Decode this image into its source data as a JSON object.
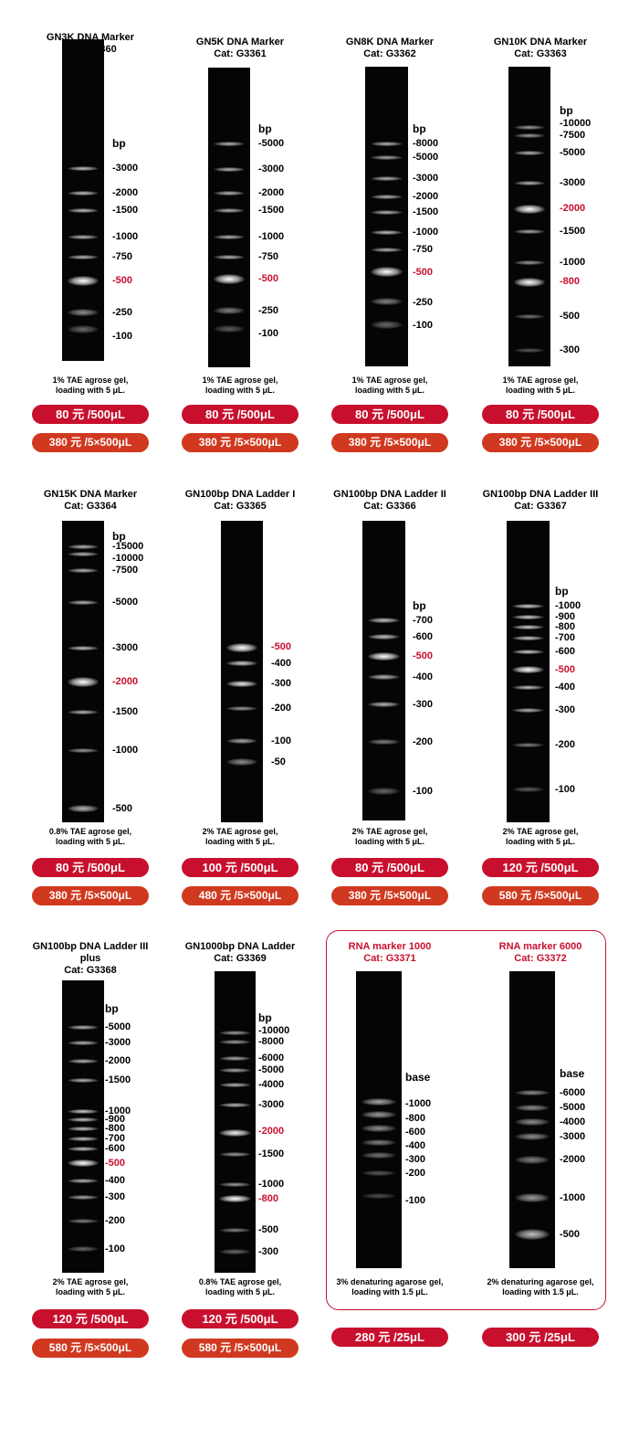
{
  "markers": [
    {
      "name": "GN3K DNA Marker",
      "cat": "Cat: G3360",
      "unit": "bp",
      "labels": [
        {
          "t": "-3000"
        },
        {
          "t": "-2000"
        },
        {
          "t": "-1500"
        },
        {
          "t": "-1000"
        },
        {
          "t": "-750"
        },
        {
          "t": "-500",
          "red": true
        },
        {
          "t": "-250"
        },
        {
          "t": "-100"
        }
      ],
      "note_line1": "1% TAE agrose gel,",
      "note_line2": "loading with 5 μL.",
      "price1": "80 元 /500μL",
      "price2": "380 元 /5×500μL"
    },
    {
      "name": "GN5K DNA Marker",
      "cat": "Cat: G3361",
      "unit": "bp",
      "labels": [
        {
          "t": "-5000"
        },
        {
          "t": "-3000"
        },
        {
          "t": "-2000"
        },
        {
          "t": "-1500"
        },
        {
          "t": "-1000"
        },
        {
          "t": "-750"
        },
        {
          "t": "-500",
          "red": true
        },
        {
          "t": "-250"
        },
        {
          "t": "-100"
        }
      ],
      "note_line1": "1% TAE agrose gel,",
      "note_line2": "loading with 5 μL.",
      "price1": "80 元 /500μL",
      "price2": "380 元 /5×500μL"
    },
    {
      "name": "GN8K DNA Marker",
      "cat": "Cat: G3362",
      "unit": "bp",
      "labels": [
        {
          "t": "-8000"
        },
        {
          "t": "-5000"
        },
        {
          "t": "-3000"
        },
        {
          "t": "-2000"
        },
        {
          "t": "-1500"
        },
        {
          "t": "-1000"
        },
        {
          "t": "-750"
        },
        {
          "t": "-500",
          "red": true
        },
        {
          "t": "-250"
        },
        {
          "t": "-100"
        }
      ],
      "note_line1": "1% TAE agrose gel,",
      "note_line2": "loading with 5 μL.",
      "price1": "80 元 /500μL",
      "price2": "380 元 /5×500μL"
    },
    {
      "name": "GN10K DNA Marker",
      "cat": "Cat: G3363",
      "unit": "bp",
      "labels": [
        {
          "t": "-10000"
        },
        {
          "t": "-7500"
        },
        {
          "t": "-5000"
        },
        {
          "t": "-3000"
        },
        {
          "t": "-2000",
          "red": true
        },
        {
          "t": "-1500"
        },
        {
          "t": "-1000"
        },
        {
          "t": "-800",
          "red": true
        },
        {
          "t": "-500"
        },
        {
          "t": "-300"
        }
      ],
      "note_line1": "1% TAE agrose gel,",
      "note_line2": "loading with 5 μL.",
      "price1": "80 元 /500μL",
      "price2": "380 元 /5×500μL"
    },
    {
      "name": "GN15K DNA Marker",
      "cat": "Cat: G3364",
      "unit": "bp",
      "labels": [
        {
          "t": "-15000"
        },
        {
          "t": "-10000"
        },
        {
          "t": "-7500"
        },
        {
          "t": "-5000"
        },
        {
          "t": "-3000"
        },
        {
          "t": "-2000",
          "red": true
        },
        {
          "t": "-1500"
        },
        {
          "t": "-1000"
        },
        {
          "t": "-500"
        }
      ],
      "note_line1": "0.8% TAE agrose gel,",
      "note_line2": "loading with 5 μL.",
      "price1": "80 元 /500μL",
      "price2": "380 元 /5×500μL"
    },
    {
      "name": "GN100bp DNA Ladder I",
      "cat": "Cat: G3365",
      "unit": "",
      "labels": [
        {
          "t": "-500",
          "red": true
        },
        {
          "t": "-400"
        },
        {
          "t": "-300"
        },
        {
          "t": "-200"
        },
        {
          "t": "-100"
        },
        {
          "t": "-50"
        }
      ],
      "note_line1": "2% TAE agrose gel,",
      "note_line2": "loading with 5 μL.",
      "price1": "100 元 /500μL",
      "price2": "480 元 /5×500μL"
    },
    {
      "name": "GN100bp DNA Ladder II",
      "cat": "Cat: G3366",
      "unit": "bp",
      "labels": [
        {
          "t": "-700"
        },
        {
          "t": "-600"
        },
        {
          "t": "-500",
          "red": true
        },
        {
          "t": "-400"
        },
        {
          "t": "-300"
        },
        {
          "t": "-200"
        },
        {
          "t": "-100"
        }
      ],
      "note_line1": "2% TAE agrose gel,",
      "note_line2": "loading with 5 μL.",
      "price1": "80 元 /500μL",
      "price2": "380 元 /5×500μL"
    },
    {
      "name": "GN100bp DNA Ladder III",
      "cat": "Cat: G3367",
      "unit": "bp",
      "labels": [
        {
          "t": "-1000"
        },
        {
          "t": "-900"
        },
        {
          "t": "-800"
        },
        {
          "t": "-700"
        },
        {
          "t": "-600"
        },
        {
          "t": "-500",
          "red": true
        },
        {
          "t": "-400"
        },
        {
          "t": "-300"
        },
        {
          "t": "-200"
        },
        {
          "t": "-100"
        }
      ],
      "note_line1": "2% TAE agrose gel,",
      "note_line2": "loading with 5 μL.",
      "price1": "120 元 /500μL",
      "price2": "580 元 /5×500μL"
    },
    {
      "name": "GN100bp DNA Ladder III plus",
      "cat": "Cat: G3368",
      "unit": "bp",
      "labels": [
        {
          "t": "-5000"
        },
        {
          "t": "-3000"
        },
        {
          "t": "-2000"
        },
        {
          "t": "-1500"
        },
        {
          "t": "-1000"
        },
        {
          "t": "-900"
        },
        {
          "t": "-800"
        },
        {
          "t": "-700"
        },
        {
          "t": "-600"
        },
        {
          "t": "-500",
          "red": true
        },
        {
          "t": "-400"
        },
        {
          "t": "-300"
        },
        {
          "t": "-200"
        },
        {
          "t": "-100"
        }
      ],
      "note_line1": "2% TAE agrose gel,",
      "note_line2": "loading with 5 μL.",
      "price1": "120 元 /500μL",
      "price2": "580 元 /5×500μL"
    },
    {
      "name": "GN1000bp DNA Ladder",
      "cat": "Cat: G3369",
      "unit": "bp",
      "labels": [
        {
          "t": "-10000"
        },
        {
          "t": "-8000"
        },
        {
          "t": "-6000"
        },
        {
          "t": "-5000"
        },
        {
          "t": "-4000"
        },
        {
          "t": "-3000"
        },
        {
          "t": "-2000",
          "red": true
        },
        {
          "t": "-1500"
        },
        {
          "t": "-1000"
        },
        {
          "t": "-800",
          "red": true
        },
        {
          "t": "-500"
        },
        {
          "t": "-300"
        }
      ],
      "note_line1": "0.8% TAE agrose gel,",
      "note_line2": "loading with 5 μL.",
      "price1": "120 元 /500μL",
      "price2": "580 元 /5×500μL"
    },
    {
      "name": "RNA marker 1000",
      "cat": "Cat: G3371",
      "unit": "base",
      "labels": [
        {
          "t": "-1000"
        },
        {
          "t": "-800"
        },
        {
          "t": "-600"
        },
        {
          "t": "-400"
        },
        {
          "t": "-300"
        },
        {
          "t": "-200"
        },
        {
          "t": "-100"
        }
      ],
      "note_line1": "3% denaturing agarose  gel,",
      "note_line2": "loading with 1.5 μL.",
      "price1": "280 元 /25μL",
      "price2": ""
    },
    {
      "name": "RNA marker 6000",
      "cat": "Cat: G3372",
      "unit": "base",
      "labels": [
        {
          "t": "-6000"
        },
        {
          "t": "-5000"
        },
        {
          "t": "-4000"
        },
        {
          "t": "-3000"
        },
        {
          "t": "-2000"
        },
        {
          "t": "-1000"
        },
        {
          "t": "-500"
        }
      ],
      "note_line1": "2% denaturing agarose  gel,",
      "note_line2": "loading with 1.5 μL.",
      "price1": "300 元 /25μL",
      "price2": ""
    }
  ]
}
